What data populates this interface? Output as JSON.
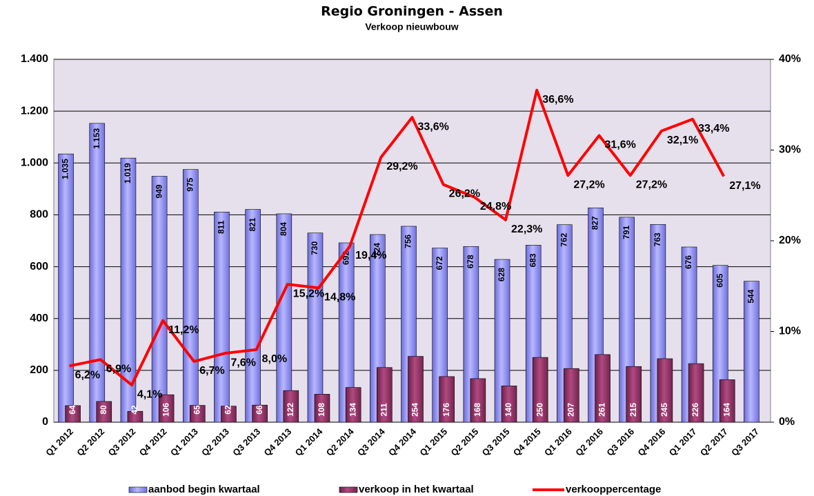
{
  "chart_data": {
    "type": "bar_line",
    "title": "Regio Groningen - Assen",
    "subtitle": "Verkoop nieuwbouw",
    "categories": [
      "Q1 2012",
      "Q2 2012",
      "Q3 2012",
      "Q4 2012",
      "Q1 2013",
      "Q2 2013",
      "Q3 2013",
      "Q4 2013",
      "Q1 2014",
      "Q2 2014",
      "Q3 2014",
      "Q4 2014",
      "Q1 2015",
      "Q2 2015",
      "Q3 2015",
      "Q4 2015",
      "Q1 2016",
      "Q2 2016",
      "Q3 2016",
      "Q4 2016",
      "Q1 2017",
      "Q2 2017",
      "Q3 2017"
    ],
    "series": [
      {
        "name": "aanbod begin kwartaal",
        "type": "bar",
        "color": "#9999ff",
        "values": [
          1035,
          1153,
          1019,
          949,
          975,
          811,
          821,
          804,
          730,
          692,
          724,
          756,
          672,
          678,
          628,
          683,
          762,
          827,
          791,
          763,
          676,
          605,
          544
        ],
        "value_labels": [
          "1.035",
          "1.153",
          "1.019",
          "949",
          "975",
          "811",
          "821",
          "804",
          "730",
          "692",
          "724",
          "756",
          "672",
          "678",
          "628",
          "683",
          "762",
          "827",
          "791",
          "763",
          "676",
          "605",
          "544"
        ]
      },
      {
        "name": "verkoop in het kwartaal",
        "type": "bar",
        "color": "#993366",
        "values": [
          64,
          80,
          42,
          106,
          65,
          62,
          66,
          122,
          108,
          134,
          211,
          254,
          176,
          168,
          140,
          250,
          207,
          261,
          215,
          245,
          226,
          164,
          null
        ]
      },
      {
        "name": "verkooppercentage",
        "type": "line",
        "axis": "y2",
        "color": "#ff0000",
        "values": [
          6.2,
          6.9,
          4.1,
          11.2,
          6.7,
          7.6,
          8.0,
          15.2,
          14.8,
          19.4,
          29.2,
          33.6,
          26.2,
          24.8,
          22.3,
          36.6,
          27.2,
          31.6,
          27.2,
          32.1,
          33.4,
          27.1,
          null
        ],
        "value_labels": [
          "6,2%",
          "6,9%",
          "4,1%",
          "11,2%",
          "6,7%",
          "7,6%",
          "8,0%",
          "15,2%",
          "14,8%",
          "19,4%",
          "29,2%",
          "33,6%",
          "26,2%",
          "24,8%",
          "22,3%",
          "36,6%",
          "27,2%",
          "31,6%",
          "27,2%",
          "32,1%",
          "33,4%",
          "27,1%",
          null
        ]
      }
    ],
    "ylim": [
      0,
      1400
    ],
    "yticks": [
      0,
      200,
      400,
      600,
      800,
      {
        "value": 1000,
        "label": "1.000"
      },
      {
        "value": 1200,
        "label": "1.200"
      },
      {
        "value": 1400,
        "label": "1.400"
      }
    ],
    "y2lim": [
      0,
      40
    ],
    "y2ticks": [
      {
        "value": 0,
        "label": "0%"
      },
      {
        "value": 10,
        "label": "10%"
      },
      {
        "value": 20,
        "label": "20%"
      },
      {
        "value": 30,
        "label": "30%"
      },
      {
        "value": 40,
        "label": "40%"
      }
    ],
    "grid": true,
    "legend": "bottom"
  }
}
